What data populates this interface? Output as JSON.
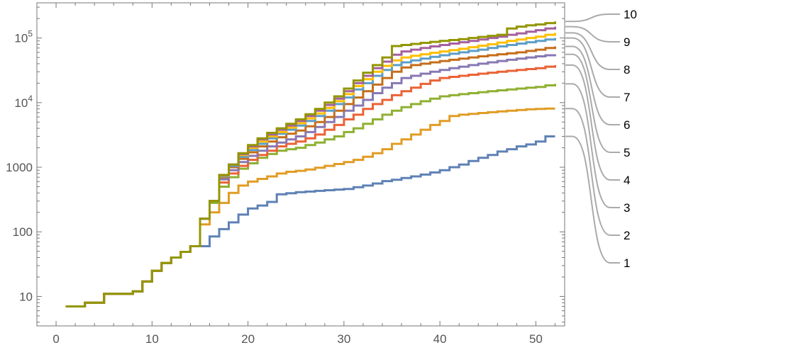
{
  "chart_data": {
    "type": "line",
    "step": true,
    "title": "",
    "xlabel": "",
    "ylabel": "",
    "xlim": [
      -2,
      53
    ],
    "ylim": [
      3.5,
      350000
    ],
    "y_scale": "log",
    "grid": false,
    "legend_placement": "right",
    "x_ticks": [
      {
        "v": 0,
        "label": "0"
      },
      {
        "v": 10,
        "label": "10"
      },
      {
        "v": 20,
        "label": "20"
      },
      {
        "v": 30,
        "label": "30"
      },
      {
        "v": 40,
        "label": "40"
      },
      {
        "v": 50,
        "label": "50"
      }
    ],
    "y_ticks": [
      {
        "v": 10,
        "base": "10",
        "exp": ""
      },
      {
        "v": 100,
        "base": "100",
        "exp": ""
      },
      {
        "v": 1000,
        "base": "1000",
        "exp": ""
      },
      {
        "v": 10000,
        "base": "10",
        "exp": "4"
      },
      {
        "v": 100000,
        "base": "10",
        "exp": "5"
      }
    ],
    "x": [
      1,
      2,
      3,
      4,
      5,
      6,
      7,
      8,
      9,
      10,
      11,
      12,
      13,
      14,
      15,
      16,
      17,
      18,
      19,
      20,
      21,
      22,
      23,
      24,
      25,
      26,
      27,
      28,
      29,
      30,
      31,
      32,
      33,
      34,
      35,
      36,
      37,
      38,
      39,
      40,
      41,
      42,
      43,
      44,
      45,
      46,
      47,
      48,
      49,
      50,
      51,
      52
    ],
    "common_prefix": [
      7,
      7,
      8,
      8,
      11,
      11,
      11,
      12,
      17,
      25,
      33,
      40,
      49,
      60
    ],
    "series": [
      {
        "name": "1",
        "color": "#5e81b5",
        "values": [
          7,
          7,
          8,
          8,
          11,
          11,
          11,
          12,
          17,
          25,
          33,
          40,
          49,
          60,
          60,
          85,
          110,
          140,
          185,
          230,
          255,
          290,
          380,
          395,
          410,
          420,
          430,
          440,
          450,
          460,
          490,
          520,
          560,
          610,
          640,
          680,
          720,
          770,
          830,
          900,
          1000,
          1100,
          1250,
          1400,
          1550,
          1750,
          1900,
          2100,
          2250,
          2500,
          3000,
          3000
        ]
      },
      {
        "name": "2",
        "color": "#e19c24",
        "values": [
          7,
          7,
          8,
          8,
          11,
          11,
          11,
          12,
          17,
          25,
          33,
          40,
          49,
          60,
          130,
          200,
          280,
          400,
          520,
          600,
          660,
          720,
          800,
          850,
          880,
          920,
          980,
          1050,
          1120,
          1200,
          1300,
          1450,
          1650,
          1900,
          2300,
          2700,
          3200,
          3800,
          4500,
          5200,
          6200,
          6500,
          6700,
          6900,
          7100,
          7300,
          7500,
          7700,
          7900,
          8000,
          8100,
          8100
        ]
      },
      {
        "name": "3",
        "color": "#8fb032",
        "values": [
          7,
          7,
          8,
          8,
          11,
          11,
          11,
          12,
          17,
          25,
          33,
          40,
          49,
          60,
          160,
          280,
          500,
          700,
          950,
          1150,
          1400,
          1600,
          1800,
          1900,
          2000,
          2200,
          2400,
          2700,
          3000,
          3500,
          4000,
          4700,
          5500,
          6500,
          7500,
          8500,
          9500,
          10500,
          11500,
          12500,
          13000,
          13500,
          14000,
          14500,
          15000,
          15500,
          16000,
          16500,
          17000,
          17500,
          18500,
          19500
        ]
      },
      {
        "name": "4",
        "color": "#eb6235",
        "values": [
          7,
          7,
          8,
          8,
          11,
          11,
          11,
          12,
          17,
          25,
          33,
          40,
          49,
          60,
          160,
          300,
          580,
          800,
          1050,
          1300,
          1550,
          1800,
          2100,
          2300,
          2500,
          2800,
          3200,
          3800,
          4500,
          5500,
          6500,
          8000,
          9500,
          11000,
          13000,
          15000,
          17000,
          19500,
          22000,
          24000,
          25000,
          26000,
          27000,
          28000,
          29000,
          30000,
          31000,
          32000,
          33000,
          34000,
          36000,
          38000
        ]
      },
      {
        "name": "5",
        "color": "#8778b3",
        "values": [
          7,
          7,
          8,
          8,
          11,
          11,
          11,
          12,
          17,
          25,
          33,
          40,
          49,
          60,
          160,
          300,
          650,
          900,
          1200,
          1500,
          1800,
          2100,
          2400,
          2700,
          3000,
          3500,
          4200,
          5000,
          6000,
          7500,
          9000,
          11000,
          14000,
          17000,
          20000,
          24000,
          26000,
          28000,
          30000,
          32000,
          34000,
          36000,
          38000,
          40000,
          42000,
          44000,
          46000,
          48000,
          50000,
          52000,
          54000,
          56000
        ]
      },
      {
        "name": "6",
        "color": "#c56e1a",
        "values": [
          7,
          7,
          8,
          8,
          11,
          11,
          11,
          12,
          17,
          25,
          33,
          40,
          49,
          60,
          160,
          300,
          700,
          1000,
          1350,
          1700,
          2100,
          2500,
          2900,
          3300,
          3700,
          4300,
          5000,
          6000,
          7500,
          9500,
          12000,
          15000,
          19000,
          24000,
          30000,
          35000,
          38000,
          40000,
          42000,
          44000,
          46000,
          48000,
          50000,
          52000,
          54000,
          56000,
          58000,
          60000,
          63000,
          66000,
          70000,
          74000
        ]
      },
      {
        "name": "7",
        "color": "#5d9ec7",
        "values": [
          7,
          7,
          8,
          8,
          11,
          11,
          11,
          12,
          17,
          25,
          33,
          40,
          49,
          60,
          160,
          300,
          720,
          1050,
          1450,
          1850,
          2300,
          2800,
          3300,
          3800,
          4400,
          5200,
          6200,
          7500,
          9500,
          12000,
          16000,
          20000,
          26000,
          32000,
          38000,
          42000,
          45000,
          48000,
          51000,
          54000,
          57000,
          60000,
          63000,
          66000,
          70000,
          74000,
          78000,
          82000,
          86000,
          90000,
          95000,
          100000
        ]
      },
      {
        "name": "8",
        "color": "#ffbf00",
        "values": [
          7,
          7,
          8,
          8,
          11,
          11,
          11,
          12,
          17,
          25,
          33,
          40,
          49,
          60,
          160,
          300,
          740,
          1100,
          1550,
          2000,
          2500,
          3000,
          3500,
          4100,
          4800,
          5700,
          6800,
          8300,
          10500,
          13500,
          18000,
          23000,
          30000,
          37000,
          45000,
          50000,
          53000,
          56000,
          59000,
          62000,
          65000,
          68000,
          72000,
          76000,
          80000,
          85000,
          90000,
          95000,
          100000,
          105000,
          112000,
          120000
        ]
      },
      {
        "name": "9",
        "color": "#a5609d",
        "values": [
          7,
          7,
          8,
          8,
          11,
          11,
          11,
          12,
          17,
          25,
          33,
          40,
          49,
          60,
          160,
          300,
          750,
          1100,
          1600,
          2100,
          2700,
          3200,
          3800,
          4400,
          5200,
          6200,
          7500,
          9200,
          11500,
          15000,
          20000,
          26000,
          34000,
          43000,
          55000,
          62000,
          66000,
          70000,
          74000,
          78000,
          82000,
          86000,
          90000,
          95000,
          100000,
          105000,
          112000,
          118000,
          125000,
          132000,
          140000,
          150000
        ]
      },
      {
        "name": "10",
        "color": "#929600",
        "values": [
          7,
          7,
          8,
          8,
          11,
          11,
          11,
          12,
          17,
          25,
          33,
          40,
          49,
          60,
          160,
          300,
          760,
          1100,
          1650,
          2200,
          2800,
          3400,
          4000,
          4700,
          5500,
          6600,
          8000,
          10000,
          12500,
          16500,
          22000,
          29000,
          38000,
          50000,
          75000,
          78000,
          81000,
          84000,
          87000,
          90000,
          93000,
          96000,
          100000,
          104000,
          108000,
          112000,
          140000,
          150000,
          157000,
          162000,
          170000,
          180000
        ]
      }
    ]
  }
}
